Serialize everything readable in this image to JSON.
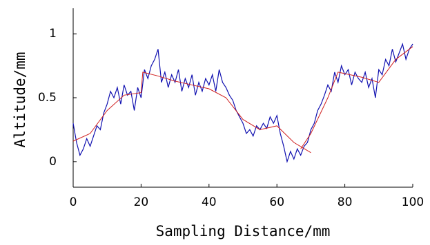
{
  "chart_data": {
    "type": "line",
    "x_label": "Sampling Distance/mm",
    "y_label": "Altitude/mm",
    "x": [
      0,
      1,
      2,
      3,
      4,
      5,
      6,
      7,
      8,
      9,
      10,
      11,
      12,
      13,
      14,
      15,
      16,
      17,
      18,
      19,
      20,
      21,
      22,
      23,
      24,
      25,
      26,
      27,
      28,
      29,
      30,
      31,
      32,
      33,
      34,
      35,
      36,
      37,
      38,
      39,
      40,
      41,
      42,
      43,
      44,
      45,
      46,
      47,
      48,
      49,
      50,
      51,
      52,
      53,
      54,
      55,
      56,
      57,
      58,
      59,
      60,
      61,
      62,
      63,
      64,
      65,
      66,
      67,
      68,
      69,
      70,
      71,
      72,
      73,
      74,
      75,
      76,
      77,
      78,
      79,
      80,
      81,
      82,
      83,
      84,
      85,
      86,
      87,
      88,
      89,
      90,
      91,
      92,
      93,
      94,
      95,
      96,
      97,
      98,
      99,
      100
    ],
    "series": [
      {
        "color": "#1010b0",
        "values": [
          0.3,
          0.15,
          0.05,
          0.1,
          0.18,
          0.12,
          0.2,
          0.28,
          0.25,
          0.38,
          0.45,
          0.55,
          0.5,
          0.58,
          0.45,
          0.6,
          0.52,
          0.55,
          0.4,
          0.58,
          0.5,
          0.72,
          0.65,
          0.75,
          0.8,
          0.88,
          0.62,
          0.7,
          0.58,
          0.68,
          0.62,
          0.72,
          0.55,
          0.65,
          0.58,
          0.68,
          0.52,
          0.62,
          0.55,
          0.65,
          0.6,
          0.68,
          0.55,
          0.72,
          0.62,
          0.58,
          0.52,
          0.48,
          0.4,
          0.35,
          0.3,
          0.22,
          0.25,
          0.2,
          0.28,
          0.25,
          0.3,
          0.26,
          0.35,
          0.3,
          0.36,
          0.22,
          0.12,
          0.0,
          0.08,
          0.02,
          0.1,
          0.05,
          0.12,
          0.15,
          0.25,
          0.3,
          0.4,
          0.45,
          0.52,
          0.6,
          0.55,
          0.7,
          0.62,
          0.75,
          0.68,
          0.72,
          0.6,
          0.7,
          0.65,
          0.62,
          0.7,
          0.58,
          0.65,
          0.5,
          0.72,
          0.68,
          0.8,
          0.75,
          0.88,
          0.78,
          0.85,
          0.92,
          0.8,
          0.88,
          0.92
        ]
      },
      {
        "color": "#d02020",
        "x": [
          0,
          5,
          10,
          15,
          20,
          20.5,
          25,
          30,
          35,
          40,
          45,
          50,
          55,
          60,
          65,
          70,
          70,
          67,
          70,
          75,
          78,
          85,
          90,
          95,
          100
        ],
        "values": [
          0.16,
          0.22,
          0.4,
          0.52,
          0.54,
          0.7,
          0.67,
          0.63,
          0.6,
          0.57,
          0.5,
          0.33,
          0.25,
          0.28,
          0.15,
          0.07,
          null,
          0.1,
          0.22,
          0.5,
          0.7,
          0.66,
          0.62,
          0.8,
          0.9
        ]
      }
    ],
    "xlim": [
      0,
      100
    ],
    "xticks": [
      0,
      20,
      40,
      60,
      80,
      100
    ],
    "ylim": [
      -0.2,
      1.2
    ],
    "yticks": [
      0,
      0.5,
      1
    ]
  }
}
